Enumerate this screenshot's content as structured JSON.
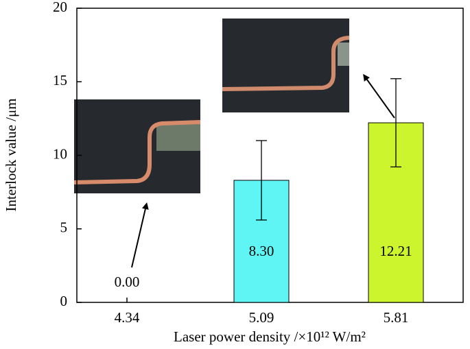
{
  "chart_data": {
    "type": "bar",
    "xlabel": "Laser power density /×10¹² W/m²",
    "ylabel": "Interlock value /μm",
    "categories": [
      "4.34",
      "5.09",
      "5.81"
    ],
    "values": [
      0,
      8.3,
      12.21
    ],
    "value_labels": [
      "0.00",
      "8.30",
      "12.21"
    ],
    "errors": [
      null,
      2.7,
      3.0
    ],
    "colors": [
      "#5ff5f5",
      "#5ff5f5",
      "#cdf52e"
    ],
    "ylim": [
      0,
      20
    ],
    "yticks": [
      0,
      5,
      10,
      15,
      20
    ],
    "grid": false
  }
}
